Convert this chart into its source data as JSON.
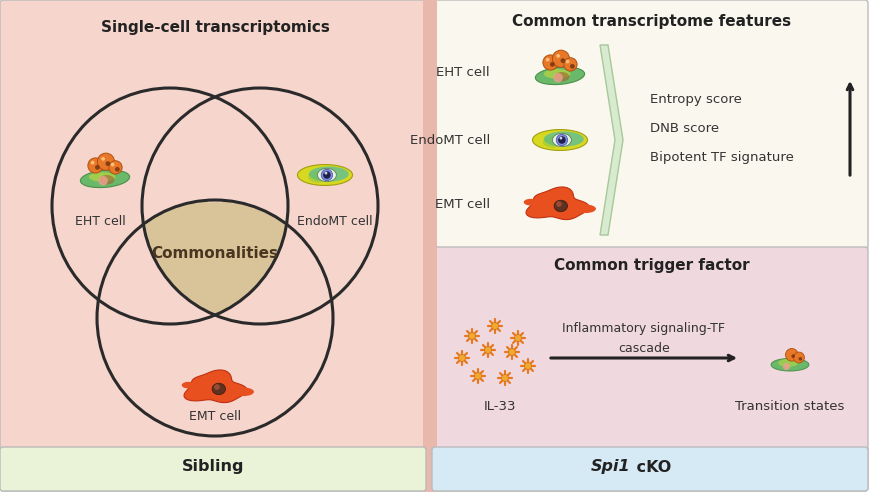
{
  "left_bg_color": "#f5d5cc",
  "right_top_bg_color": "#faf8ee",
  "right_bottom_bg_color": "#f0d8df",
  "bottom_left_bg_color": "#eaf2d8",
  "bottom_right_bg_color": "#d5eaf5",
  "left_title": "Single-cell transcriptomics",
  "right_top_title": "Common transcriptome features",
  "right_bottom_title": "Common trigger factor",
  "bottom_left_label": "Sibling",
  "bottom_right_label_italic": "Spi1",
  "bottom_right_label_normal": " cKO",
  "center_label": "Commonalities",
  "venn_labels": [
    "EHT cell",
    "EndoMT cell",
    "EMT cell"
  ],
  "right_cell_labels": [
    "EHT cell",
    "EndoMT cell",
    "EMT cell"
  ],
  "feature_labels": [
    "Entropy score",
    "DNB score",
    "Bipotent TF signature"
  ],
  "il33_label": "IL-33",
  "arrow_label_line1": "Inflammatory signaling-TF",
  "arrow_label_line2": "cascade",
  "transition_label": "Transition states",
  "venn_center_color": "#d9c49a",
  "circle_color": "#2a2a2a",
  "border_color": "#bbbbbb"
}
